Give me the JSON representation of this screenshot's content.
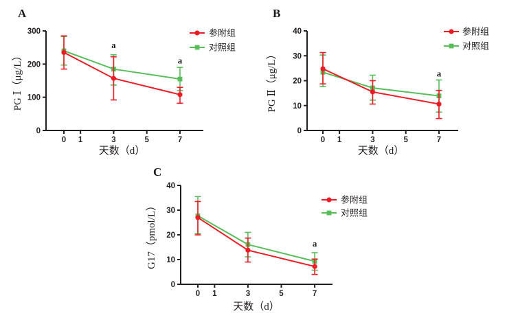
{
  "figure": {
    "background": "#ffffff",
    "axis_color": "#231f20",
    "annotation_color": "#231f20"
  },
  "chart_data": [
    {
      "panel_label": "A",
      "type": "line",
      "title": "",
      "xlabel": "天数（d）",
      "ylabel": "PG Ⅰ（μg/L）",
      "x": [
        0,
        3,
        7
      ],
      "x_ticks": [
        0,
        1,
        3,
        5,
        7
      ],
      "xlim": [
        -1.1,
        8.4
      ],
      "y_ticks": [
        0,
        100,
        200,
        300
      ],
      "ylim": [
        0,
        300
      ],
      "grid": false,
      "legend_position": "top-right",
      "series": [
        {
          "name": "参附组",
          "marker": "circle",
          "color": "#ED1C24",
          "values": [
            235,
            157,
            108
          ],
          "err": [
            [
              185,
              285
            ],
            [
              92,
              222
            ],
            [
              82,
              130
            ]
          ]
        },
        {
          "name": "对照组",
          "marker": "square",
          "color": "#57BE5A",
          "values": [
            240,
            185,
            155
          ],
          "err": [
            [
              197,
              283
            ],
            [
              137,
              228
            ],
            [
              120,
              190
            ]
          ]
        }
      ],
      "annotations": [
        {
          "text": "a",
          "x": 3,
          "y": 248
        },
        {
          "text": "a",
          "x": 7,
          "y": 202
        }
      ]
    },
    {
      "panel_label": "B",
      "type": "line",
      "title": "",
      "xlabel": "天数（d）",
      "ylabel": "PG Ⅱ（μg/L）",
      "x": [
        0,
        3,
        7
      ],
      "x_ticks": [
        0,
        1,
        3,
        5,
        7
      ],
      "xlim": [
        -1.1,
        8.4
      ],
      "y_ticks": [
        0,
        10,
        20,
        30,
        40
      ],
      "ylim": [
        0,
        40
      ],
      "grid": false,
      "legend_position": "top-right",
      "series": [
        {
          "name": "参附组",
          "marker": "circle",
          "color": "#ED1C24",
          "values": [
            24.8,
            15.5,
            10.6
          ],
          "err": [
            [
              18.7,
              31.3
            ],
            [
              10.6,
              20.0
            ],
            [
              4.8,
              16.1
            ]
          ]
        },
        {
          "name": "对照组",
          "marker": "square",
          "color": "#57BE5A",
          "values": [
            23.4,
            17.1,
            13.9
          ],
          "err": [
            [
              17.6,
              30.3
            ],
            [
              12.2,
              22.2
            ],
            [
              7.4,
              20.3
            ]
          ]
        }
      ],
      "annotations": [
        {
          "text": "a",
          "x": 7,
          "y": 21.7
        }
      ]
    },
    {
      "panel_label": "C",
      "type": "line",
      "title": "",
      "xlabel": "天数（d）",
      "ylabel": "G17（pmol/L）",
      "x": [
        0,
        3,
        7
      ],
      "x_ticks": [
        0,
        1,
        3,
        5,
        7
      ],
      "xlim": [
        -1.1,
        8.4
      ],
      "y_ticks": [
        0,
        10,
        20,
        30,
        40
      ],
      "ylim": [
        0,
        40
      ],
      "grid": false,
      "legend_position": "top-right",
      "series": [
        {
          "name": "参附组",
          "marker": "circle",
          "color": "#ED1C24",
          "values": [
            27.0,
            13.8,
            7.2
          ],
          "err": [
            [
              20.0,
              33.5
            ],
            [
              9.0,
              18.7
            ],
            [
              4.0,
              10.2
            ]
          ]
        },
        {
          "name": "对照组",
          "marker": "square",
          "color": "#57BE5A",
          "values": [
            27.7,
            16.1,
            9.3
          ],
          "err": [
            [
              20.5,
              35.5
            ],
            [
              11.1,
              21.0
            ],
            [
              5.7,
              12.8
            ]
          ]
        }
      ],
      "annotations": [
        {
          "text": "a",
          "x": 7,
          "y": 15.3
        }
      ]
    }
  ]
}
